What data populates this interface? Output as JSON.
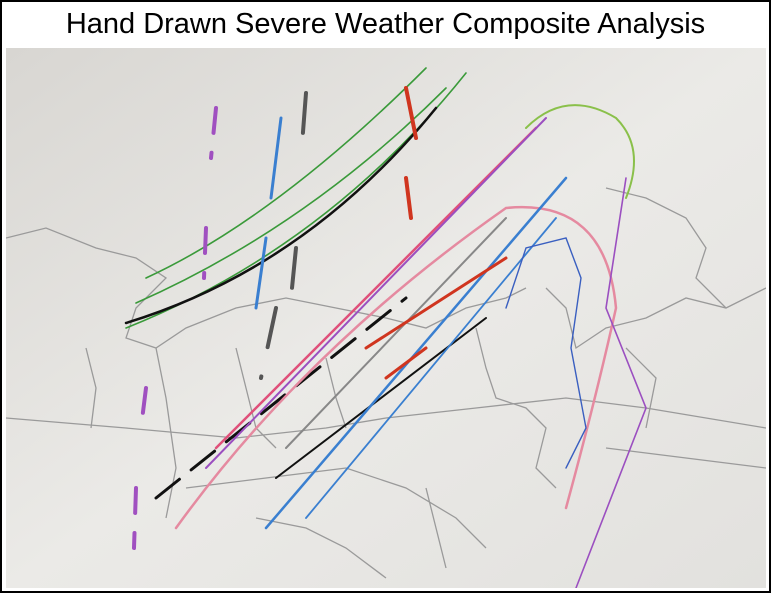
{
  "header": {
    "title": "Hand Drawn Severe Weather Composite Analysis"
  }
}
